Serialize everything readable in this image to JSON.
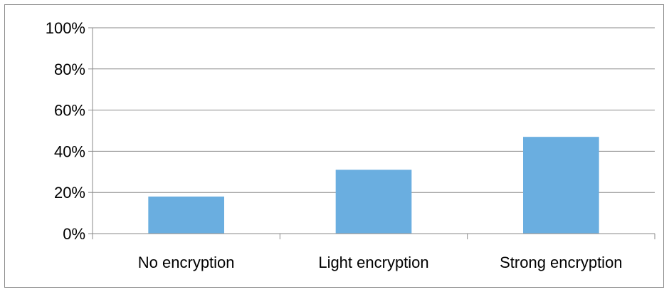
{
  "chart_data": {
    "type": "bar",
    "title": "",
    "xlabel": "",
    "ylabel": "",
    "categories": [
      "No encryption",
      "Light encryption",
      "Strong encryption"
    ],
    "values": [
      18,
      31,
      47
    ],
    "unit": "%",
    "ylim": [
      0,
      100
    ],
    "yticks": [
      0,
      20,
      40,
      60,
      80,
      100
    ],
    "ytick_labels": [
      "0%",
      "20%",
      "40%",
      "60%",
      "80%",
      "100%"
    ],
    "grid": true,
    "legend": false,
    "bar_color": "#6aaee0",
    "grid_color": "#8a8a8a"
  }
}
